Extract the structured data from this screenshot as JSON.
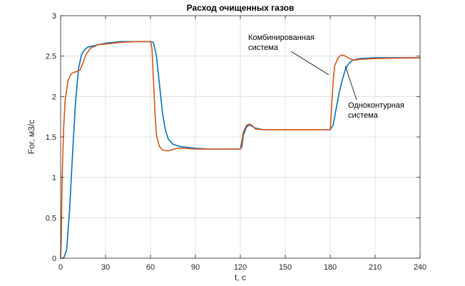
{
  "chart_data": {
    "type": "line",
    "title": "Расход очищенных  газов",
    "xlabel": "t, c",
    "ylabel": "For, м3/с",
    "xlim": [
      0,
      240
    ],
    "ylim": [
      0,
      3
    ],
    "xticks": [
      0,
      30,
      60,
      90,
      120,
      150,
      180,
      210,
      240
    ],
    "yticks": [
      0,
      0.5,
      1,
      1.5,
      2,
      2.5,
      3
    ],
    "xtick_labels": [
      "0",
      "30",
      "60",
      "90",
      "120",
      "150",
      "180",
      "210",
      "240"
    ],
    "ytick_labels": [
      "0",
      "0.5",
      "1",
      "1.5",
      "2",
      "2.5",
      "3"
    ],
    "grid": true,
    "series": [
      {
        "name": "Одноконтурная система",
        "color": "#0072BD",
        "points": [
          [
            0,
            0
          ],
          [
            2,
            0
          ],
          [
            4,
            0.1
          ],
          [
            6,
            0.6
          ],
          [
            8,
            1.3
          ],
          [
            10,
            1.95
          ],
          [
            12,
            2.35
          ],
          [
            14,
            2.52
          ],
          [
            16,
            2.58
          ],
          [
            18,
            2.61
          ],
          [
            20,
            2.62
          ],
          [
            25,
            2.64
          ],
          [
            30,
            2.66
          ],
          [
            40,
            2.68
          ],
          [
            50,
            2.68
          ],
          [
            60,
            2.68
          ],
          [
            62,
            2.67
          ],
          [
            64,
            2.5
          ],
          [
            66,
            2.15
          ],
          [
            68,
            1.8
          ],
          [
            70,
            1.58
          ],
          [
            72,
            1.47
          ],
          [
            75,
            1.41
          ],
          [
            80,
            1.38
          ],
          [
            85,
            1.37
          ],
          [
            90,
            1.36
          ],
          [
            100,
            1.35
          ],
          [
            110,
            1.35
          ],
          [
            120,
            1.35
          ],
          [
            121,
            1.38
          ],
          [
            122,
            1.52
          ],
          [
            124,
            1.62
          ],
          [
            126,
            1.65
          ],
          [
            128,
            1.63
          ],
          [
            130,
            1.61
          ],
          [
            135,
            1.59
          ],
          [
            150,
            1.59
          ],
          [
            170,
            1.59
          ],
          [
            180,
            1.59
          ],
          [
            182,
            1.65
          ],
          [
            184,
            1.85
          ],
          [
            186,
            2.05
          ],
          [
            188,
            2.2
          ],
          [
            190,
            2.33
          ],
          [
            192,
            2.4
          ],
          [
            195,
            2.45
          ],
          [
            200,
            2.47
          ],
          [
            210,
            2.48
          ],
          [
            240,
            2.48
          ]
        ]
      },
      {
        "name": "Комбинированная система",
        "color": "#D95319",
        "points": [
          [
            0,
            0
          ],
          [
            0.5,
            0.3
          ],
          [
            1,
            1.0
          ],
          [
            2,
            1.6
          ],
          [
            3,
            1.95
          ],
          [
            5,
            2.2
          ],
          [
            7,
            2.28
          ],
          [
            9,
            2.3
          ],
          [
            11,
            2.31
          ],
          [
            13,
            2.33
          ],
          [
            15,
            2.42
          ],
          [
            17,
            2.52
          ],
          [
            20,
            2.6
          ],
          [
            25,
            2.64
          ],
          [
            30,
            2.65
          ],
          [
            40,
            2.67
          ],
          [
            50,
            2.68
          ],
          [
            60,
            2.68
          ],
          [
            61,
            2.6
          ],
          [
            62,
            2.2
          ],
          [
            63,
            1.8
          ],
          [
            64,
            1.52
          ],
          [
            66,
            1.38
          ],
          [
            68,
            1.34
          ],
          [
            70,
            1.33
          ],
          [
            72,
            1.33
          ],
          [
            74,
            1.34
          ],
          [
            78,
            1.36
          ],
          [
            82,
            1.36
          ],
          [
            90,
            1.35
          ],
          [
            100,
            1.35
          ],
          [
            110,
            1.35
          ],
          [
            120,
            1.35
          ],
          [
            121,
            1.45
          ],
          [
            122,
            1.56
          ],
          [
            124,
            1.64
          ],
          [
            126,
            1.66
          ],
          [
            128,
            1.64
          ],
          [
            130,
            1.6
          ],
          [
            135,
            1.59
          ],
          [
            150,
            1.59
          ],
          [
            170,
            1.59
          ],
          [
            180,
            1.59
          ],
          [
            181,
            1.9
          ],
          [
            182,
            2.2
          ],
          [
            183,
            2.38
          ],
          [
            185,
            2.47
          ],
          [
            187,
            2.51
          ],
          [
            189,
            2.51
          ],
          [
            191,
            2.49
          ],
          [
            193,
            2.47
          ],
          [
            196,
            2.45
          ],
          [
            200,
            2.46
          ],
          [
            210,
            2.47
          ],
          [
            240,
            2.48
          ]
        ]
      }
    ],
    "annotations": [
      {
        "lines": [
          "Комбинированная",
          "система"
        ],
        "target_series": 1,
        "target": [
          179,
          2.27
        ]
      },
      {
        "lines": [
          "Одноконтурная",
          "система"
        ],
        "target_series": 0,
        "target": [
          190,
          2.38
        ]
      }
    ]
  }
}
